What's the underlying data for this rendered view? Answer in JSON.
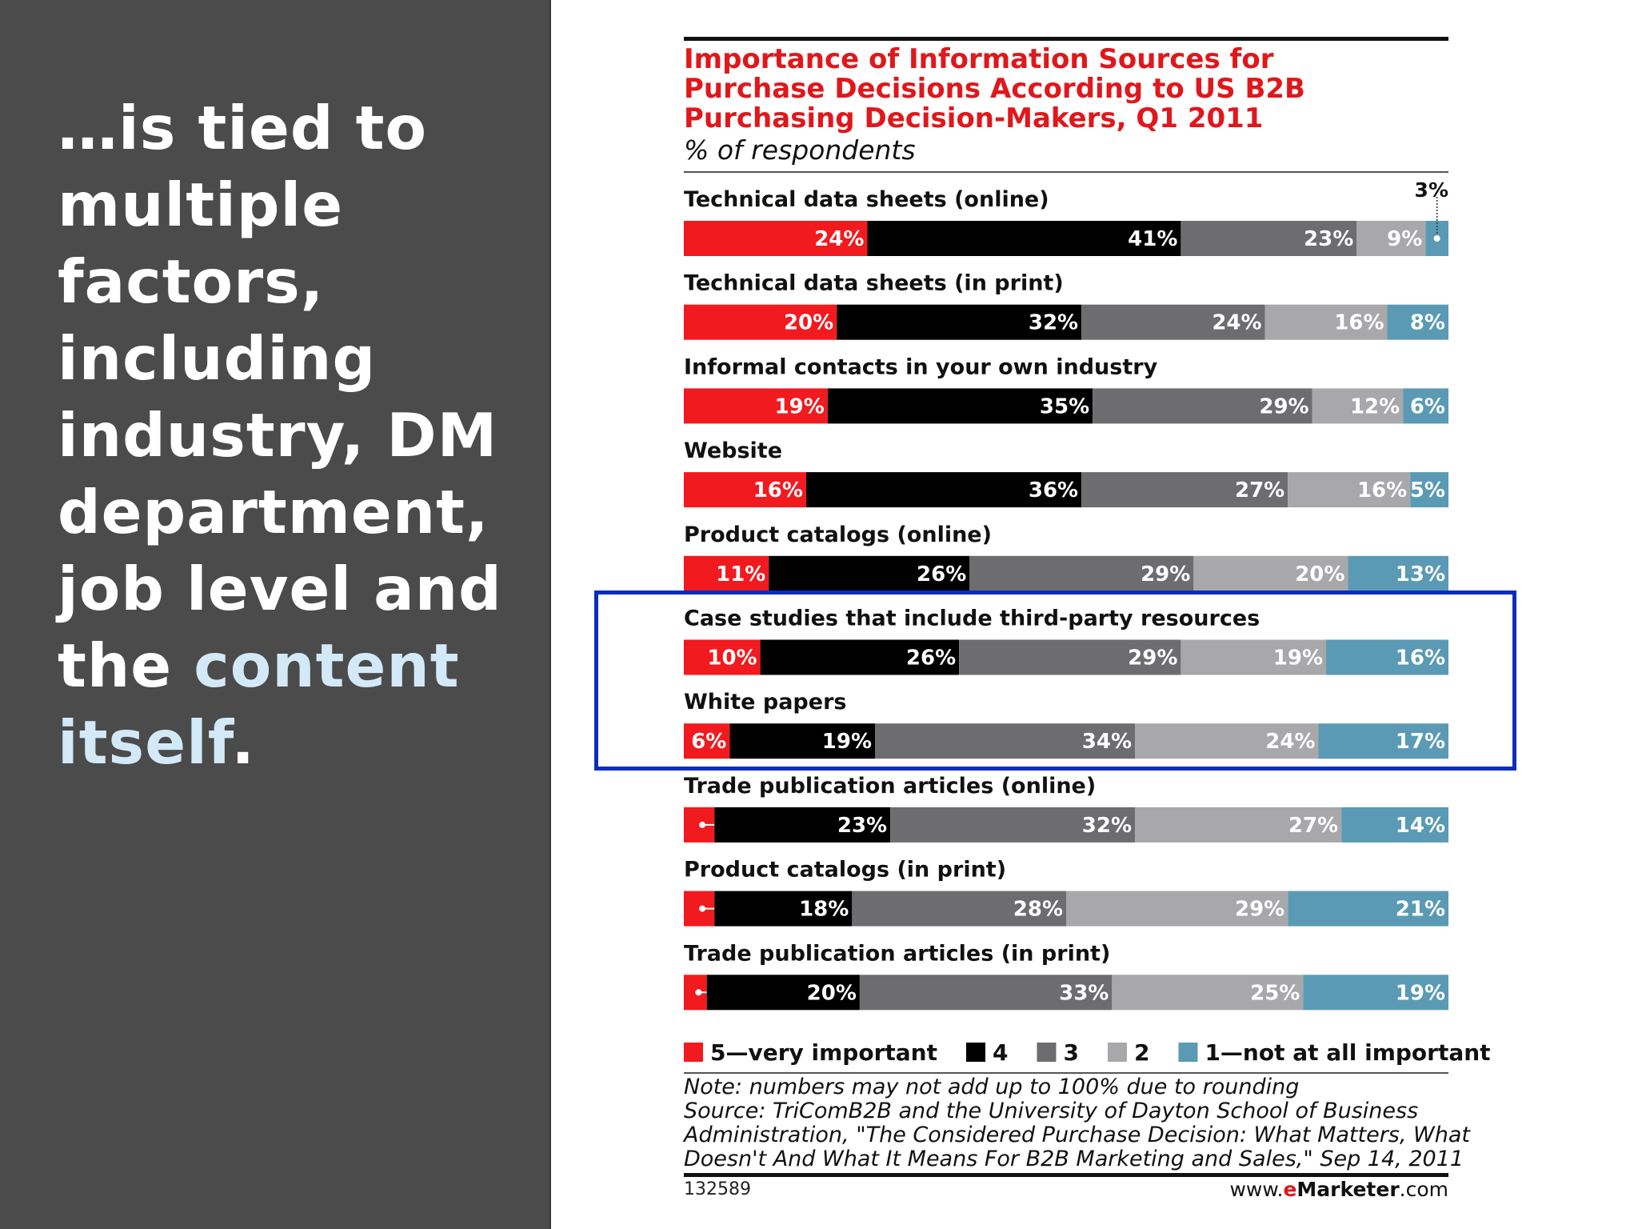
{
  "slide": {
    "headline_main": "…is tied to multiple factors, including industry, DM department, job level and the ",
    "headline_highlight": "content itself",
    "headline_end": "."
  },
  "colors": {
    "panel_bg": "#4b4b4c",
    "highlight_text": "#d3e9f7",
    "title_red": "#e0171b",
    "highlight_box": "#0a2dbf",
    "seg_5": "#f11a1e",
    "seg_4": "#000000",
    "seg_3": "#6d6d6f",
    "seg_2": "#a8a8aa",
    "seg_1": "#5a9ab4"
  },
  "chart_data": {
    "type": "bar",
    "orientation": "horizontal",
    "stacked": true,
    "title": "Importance of Information Sources for Purchase Decisions According to US B2B Purchasing Decision-Makers, Q1 2011",
    "subtitle": "% of respondents",
    "unit": "%",
    "categories": [
      "Technical data sheets (online)",
      "Technical data sheets (in print)",
      "Informal contacts in your own industry",
      "Website",
      "Product catalogs (online)",
      "Case studies that include third-party resources",
      "White papers",
      "Trade publication articles (online)",
      "Product catalogs (in print)",
      "Trade publication articles (in print)"
    ],
    "series": [
      {
        "name": "5—very important",
        "color": "#f11a1e",
        "values": [
          24,
          20,
          19,
          16,
          11,
          10,
          6,
          4,
          4,
          3
        ]
      },
      {
        "name": "4",
        "color": "#000000",
        "values": [
          41,
          32,
          35,
          36,
          26,
          26,
          19,
          23,
          18,
          20
        ]
      },
      {
        "name": "3",
        "color": "#6d6d6f",
        "values": [
          23,
          24,
          29,
          27,
          29,
          29,
          34,
          32,
          28,
          33
        ]
      },
      {
        "name": "2",
        "color": "#a8a8aa",
        "values": [
          9,
          16,
          12,
          16,
          20,
          19,
          24,
          27,
          29,
          25
        ]
      },
      {
        "name": "1—not at all important",
        "color": "#5a9ab4",
        "values": [
          3,
          8,
          6,
          5,
          13,
          16,
          17,
          14,
          21,
          19
        ]
      }
    ],
    "legend_position": "bottom",
    "highlighted_categories": [
      "Case studies that include third-party resources",
      "White papers"
    ],
    "notes": [
      "Note: numbers may not add up to 100% due to rounding",
      "Source: TriComB2B and the University of Dayton School of Business",
      "Administration, \"The Considered Purchase Decision: What Matters, What",
      "Doesn't And What It Means For B2B Marketing and Sales,\" Sep 14, 2011"
    ],
    "chart_id": "132589",
    "brand": {
      "prefix": "www.",
      "highlight": "e",
      "name": "Marketer",
      "suffix": ".com"
    }
  }
}
